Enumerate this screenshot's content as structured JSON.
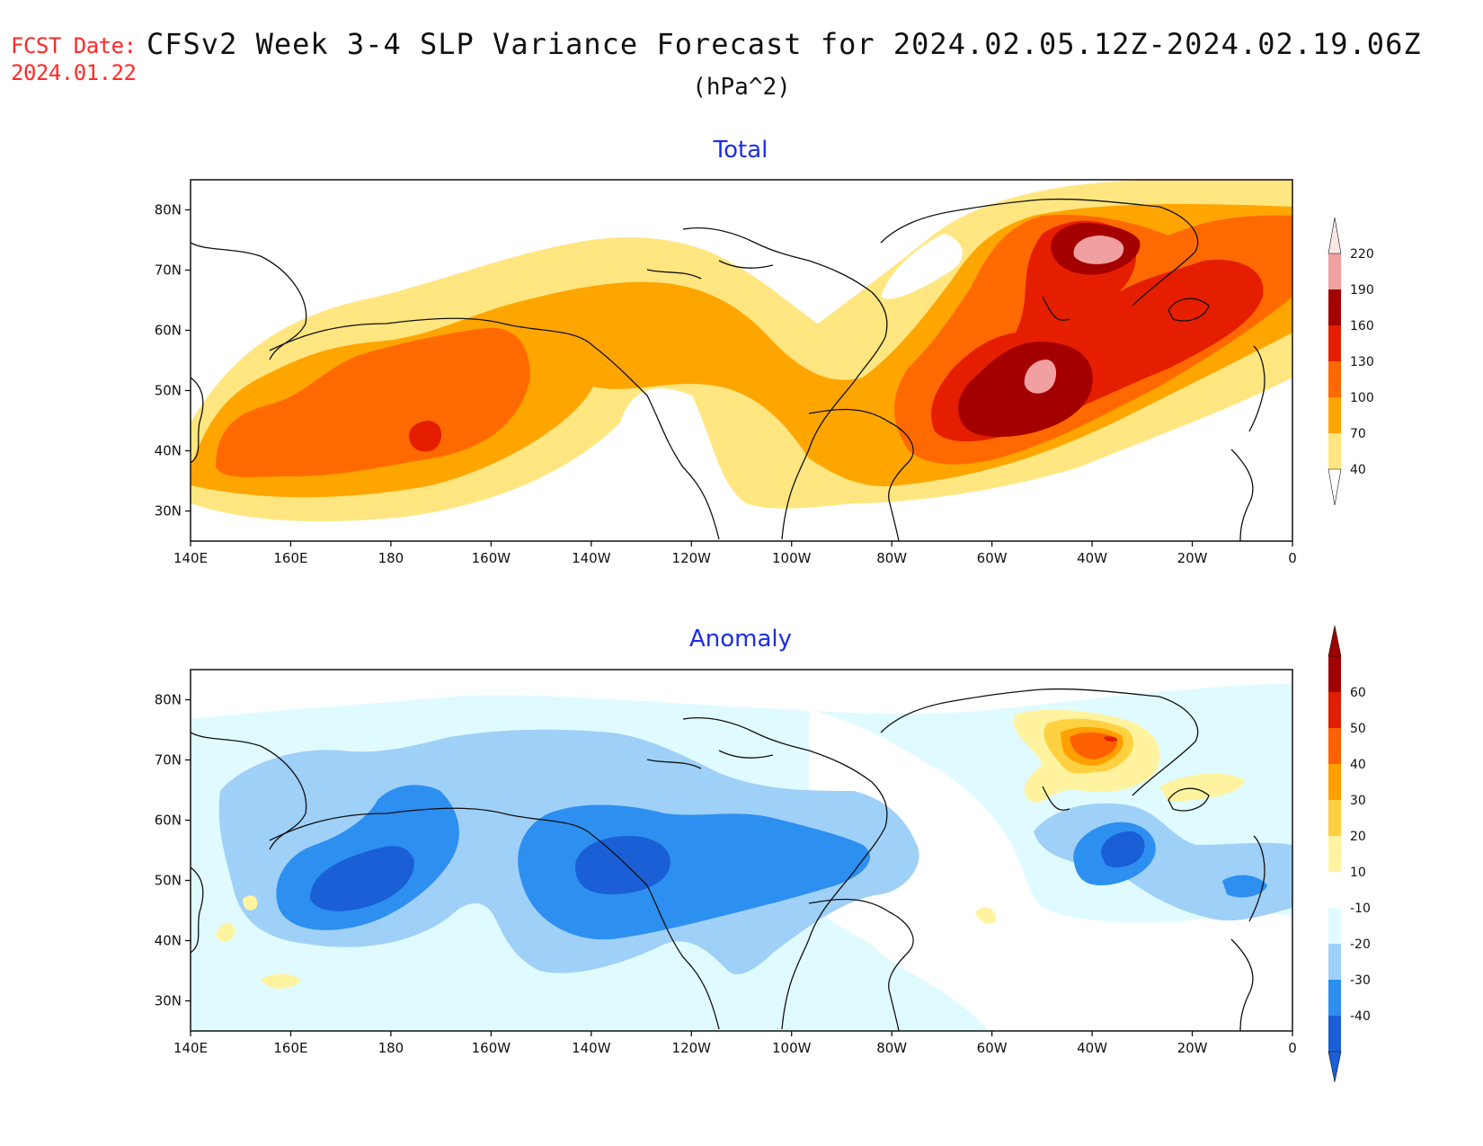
{
  "header": {
    "fcst_label": "FCST Date:",
    "fcst_date": "2024.01.22",
    "title": "CFSv2 Week 3-4 SLP Variance Forecast for 2024.02.05.12Z-2024.02.19.06Z",
    "units": "(hPa^2)"
  },
  "axes": {
    "lon_labels": [
      "140E",
      "160E",
      "180",
      "160W",
      "140W",
      "120W",
      "100W",
      "80W",
      "60W",
      "40W",
      "20W",
      "0"
    ],
    "lat_labels": [
      "30N",
      "40N",
      "50N",
      "60N",
      "70N",
      "80N"
    ],
    "lon_range": [
      140,
      360
    ],
    "lat_range": [
      25,
      85
    ]
  },
  "panels": [
    {
      "title": "Total",
      "colorbar": {
        "levels": [
          "40",
          "70",
          "100",
          "130",
          "160",
          "190",
          "220"
        ],
        "colors": [
          "#ffe680",
          "#ffa500",
          "#ff6a00",
          "#e61e00",
          "#a50000",
          "#f0a0a0"
        ]
      }
    },
    {
      "title": "Anomaly",
      "colorbar": {
        "levels": [
          "-40",
          "-30",
          "-20",
          "-10",
          "10",
          "20",
          "30",
          "40",
          "50",
          "60"
        ],
        "colors": [
          "#1a5fd6",
          "#2d8ff0",
          "#9fd0f8",
          "#e0fbff",
          "#ffffff",
          "#fff3a0",
          "#ffd040",
          "#ffa000",
          "#ff6000",
          "#e01e00",
          "#a00000"
        ]
      }
    }
  ]
}
